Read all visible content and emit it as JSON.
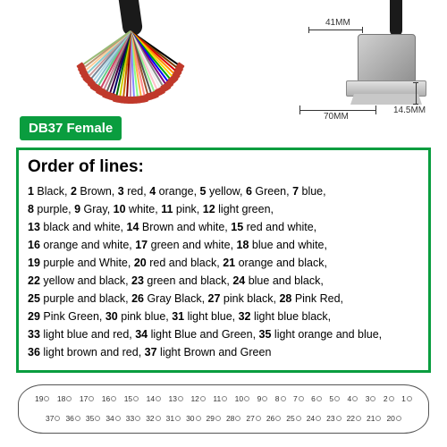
{
  "badge": {
    "label": "DB37 Female",
    "bg": "#0a9d3f",
    "color": "#ffffff"
  },
  "dimensions": {
    "width_top": "41MM",
    "width_bottom": "70MM",
    "depth": "14.5MM"
  },
  "info": {
    "title": "Order of lines:",
    "lines": [
      [
        [
          "1",
          "Black"
        ],
        [
          "2",
          "Brown"
        ],
        [
          "3",
          "red"
        ],
        [
          "4",
          "orange"
        ],
        [
          "5",
          "yellow"
        ],
        [
          "6",
          "Green"
        ],
        [
          "7",
          "blue"
        ]
      ],
      [
        [
          "8",
          "purple"
        ],
        [
          "9",
          "Gray"
        ],
        [
          "10",
          "white"
        ],
        [
          "11",
          "pink"
        ],
        [
          "12",
          "light green"
        ]
      ],
      [
        [
          "13",
          "black and white"
        ],
        [
          "14",
          "Brown and white"
        ],
        [
          "15",
          "red and white"
        ]
      ],
      [
        [
          "16",
          "orange and white"
        ],
        [
          "17",
          "green and white"
        ],
        [
          "18",
          "blue and white"
        ]
      ],
      [
        [
          "19",
          "purple and White"
        ],
        [
          "20",
          "red and black"
        ],
        [
          "21",
          "orange and black"
        ]
      ],
      [
        [
          "22",
          "yellow and black"
        ],
        [
          "23",
          "green and black"
        ],
        [
          "24",
          "blue and black"
        ]
      ],
      [
        [
          "25",
          "purple and black"
        ],
        [
          "26",
          "Gray Black"
        ],
        [
          "27",
          "pink black"
        ],
        [
          "28",
          "Pink Red"
        ]
      ],
      [
        [
          "29",
          "Pink Green"
        ],
        [
          "30",
          "pink blue"
        ],
        [
          "31",
          "light blue"
        ],
        [
          "32",
          "light blue black"
        ]
      ],
      [
        [
          "33",
          "light blue and red"
        ],
        [
          "34",
          "light Blue and Green"
        ],
        [
          "35",
          "light orange and blue"
        ]
      ],
      [
        [
          "36",
          "light brown and red"
        ],
        [
          "37",
          "light Brown and Green"
        ]
      ]
    ]
  },
  "pinout": {
    "top_row": [
      19,
      18,
      17,
      16,
      15,
      14,
      13,
      12,
      11,
      10,
      9,
      8,
      7,
      6,
      5,
      4,
      3,
      2,
      1
    ],
    "bottom_row": [
      37,
      36,
      35,
      34,
      33,
      32,
      31,
      30,
      29,
      28,
      27,
      26,
      25,
      24,
      23,
      22,
      21,
      20
    ]
  },
  "wire_colors": [
    "#000",
    "#7b3f00",
    "#d00",
    "#ff8c00",
    "#ffd700",
    "#0a0",
    "#00f",
    "#800080",
    "#888",
    "#eee",
    "#ffc0cb",
    "#90ee90",
    "#555",
    "#a0522d",
    "#f88",
    "#ffb347",
    "#8f8",
    "#88f",
    "#b8b",
    "#800",
    "#c60",
    "#cc0",
    "#060",
    "#006",
    "#404",
    "#666",
    "#c89",
    "#c46",
    "#6c8",
    "#8bc",
    "#add8e6",
    "#789",
    "#c99",
    "#8cc",
    "#fc9",
    "#b97",
    "#9b7"
  ]
}
